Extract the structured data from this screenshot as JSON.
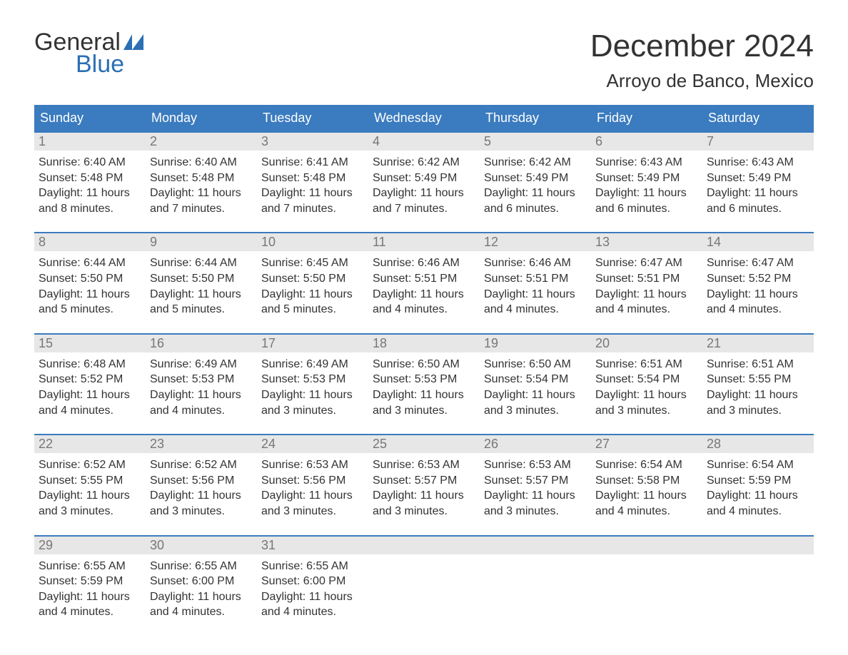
{
  "logo": {
    "word1": "General",
    "word2": "Blue",
    "word1_color": "#333333",
    "word2_color": "#2b6fb5"
  },
  "title": "December 2024",
  "subtitle": "Arroyo de Banco, Mexico",
  "colors": {
    "header_bg": "#3b7bbf",
    "header_text": "#ffffff",
    "daynum_bg": "#e7e7e7",
    "daynum_text": "#777777",
    "body_text": "#333333",
    "row_border": "#3b7bbf",
    "page_bg": "#ffffff"
  },
  "typography": {
    "title_fontsize": 44,
    "subtitle_fontsize": 26,
    "weekday_fontsize": 18,
    "daynum_fontsize": 18,
    "body_fontsize": 16
  },
  "weekdays": [
    "Sunday",
    "Monday",
    "Tuesday",
    "Wednesday",
    "Thursday",
    "Friday",
    "Saturday"
  ],
  "weeks": [
    [
      {
        "day": "1",
        "sunrise": "Sunrise: 6:40 AM",
        "sunset": "Sunset: 5:48 PM",
        "daylight": "Daylight: 11 hours and 8 minutes."
      },
      {
        "day": "2",
        "sunrise": "Sunrise: 6:40 AM",
        "sunset": "Sunset: 5:48 PM",
        "daylight": "Daylight: 11 hours and 7 minutes."
      },
      {
        "day": "3",
        "sunrise": "Sunrise: 6:41 AM",
        "sunset": "Sunset: 5:48 PM",
        "daylight": "Daylight: 11 hours and 7 minutes."
      },
      {
        "day": "4",
        "sunrise": "Sunrise: 6:42 AM",
        "sunset": "Sunset: 5:49 PM",
        "daylight": "Daylight: 11 hours and 7 minutes."
      },
      {
        "day": "5",
        "sunrise": "Sunrise: 6:42 AM",
        "sunset": "Sunset: 5:49 PM",
        "daylight": "Daylight: 11 hours and 6 minutes."
      },
      {
        "day": "6",
        "sunrise": "Sunrise: 6:43 AM",
        "sunset": "Sunset: 5:49 PM",
        "daylight": "Daylight: 11 hours and 6 minutes."
      },
      {
        "day": "7",
        "sunrise": "Sunrise: 6:43 AM",
        "sunset": "Sunset: 5:49 PM",
        "daylight": "Daylight: 11 hours and 6 minutes."
      }
    ],
    [
      {
        "day": "8",
        "sunrise": "Sunrise: 6:44 AM",
        "sunset": "Sunset: 5:50 PM",
        "daylight": "Daylight: 11 hours and 5 minutes."
      },
      {
        "day": "9",
        "sunrise": "Sunrise: 6:44 AM",
        "sunset": "Sunset: 5:50 PM",
        "daylight": "Daylight: 11 hours and 5 minutes."
      },
      {
        "day": "10",
        "sunrise": "Sunrise: 6:45 AM",
        "sunset": "Sunset: 5:50 PM",
        "daylight": "Daylight: 11 hours and 5 minutes."
      },
      {
        "day": "11",
        "sunrise": "Sunrise: 6:46 AM",
        "sunset": "Sunset: 5:51 PM",
        "daylight": "Daylight: 11 hours and 4 minutes."
      },
      {
        "day": "12",
        "sunrise": "Sunrise: 6:46 AM",
        "sunset": "Sunset: 5:51 PM",
        "daylight": "Daylight: 11 hours and 4 minutes."
      },
      {
        "day": "13",
        "sunrise": "Sunrise: 6:47 AM",
        "sunset": "Sunset: 5:51 PM",
        "daylight": "Daylight: 11 hours and 4 minutes."
      },
      {
        "day": "14",
        "sunrise": "Sunrise: 6:47 AM",
        "sunset": "Sunset: 5:52 PM",
        "daylight": "Daylight: 11 hours and 4 minutes."
      }
    ],
    [
      {
        "day": "15",
        "sunrise": "Sunrise: 6:48 AM",
        "sunset": "Sunset: 5:52 PM",
        "daylight": "Daylight: 11 hours and 4 minutes."
      },
      {
        "day": "16",
        "sunrise": "Sunrise: 6:49 AM",
        "sunset": "Sunset: 5:53 PM",
        "daylight": "Daylight: 11 hours and 4 minutes."
      },
      {
        "day": "17",
        "sunrise": "Sunrise: 6:49 AM",
        "sunset": "Sunset: 5:53 PM",
        "daylight": "Daylight: 11 hours and 3 minutes."
      },
      {
        "day": "18",
        "sunrise": "Sunrise: 6:50 AM",
        "sunset": "Sunset: 5:53 PM",
        "daylight": "Daylight: 11 hours and 3 minutes."
      },
      {
        "day": "19",
        "sunrise": "Sunrise: 6:50 AM",
        "sunset": "Sunset: 5:54 PM",
        "daylight": "Daylight: 11 hours and 3 minutes."
      },
      {
        "day": "20",
        "sunrise": "Sunrise: 6:51 AM",
        "sunset": "Sunset: 5:54 PM",
        "daylight": "Daylight: 11 hours and 3 minutes."
      },
      {
        "day": "21",
        "sunrise": "Sunrise: 6:51 AM",
        "sunset": "Sunset: 5:55 PM",
        "daylight": "Daylight: 11 hours and 3 minutes."
      }
    ],
    [
      {
        "day": "22",
        "sunrise": "Sunrise: 6:52 AM",
        "sunset": "Sunset: 5:55 PM",
        "daylight": "Daylight: 11 hours and 3 minutes."
      },
      {
        "day": "23",
        "sunrise": "Sunrise: 6:52 AM",
        "sunset": "Sunset: 5:56 PM",
        "daylight": "Daylight: 11 hours and 3 minutes."
      },
      {
        "day": "24",
        "sunrise": "Sunrise: 6:53 AM",
        "sunset": "Sunset: 5:56 PM",
        "daylight": "Daylight: 11 hours and 3 minutes."
      },
      {
        "day": "25",
        "sunrise": "Sunrise: 6:53 AM",
        "sunset": "Sunset: 5:57 PM",
        "daylight": "Daylight: 11 hours and 3 minutes."
      },
      {
        "day": "26",
        "sunrise": "Sunrise: 6:53 AM",
        "sunset": "Sunset: 5:57 PM",
        "daylight": "Daylight: 11 hours and 3 minutes."
      },
      {
        "day": "27",
        "sunrise": "Sunrise: 6:54 AM",
        "sunset": "Sunset: 5:58 PM",
        "daylight": "Daylight: 11 hours and 4 minutes."
      },
      {
        "day": "28",
        "sunrise": "Sunrise: 6:54 AM",
        "sunset": "Sunset: 5:59 PM",
        "daylight": "Daylight: 11 hours and 4 minutes."
      }
    ],
    [
      {
        "day": "29",
        "sunrise": "Sunrise: 6:55 AM",
        "sunset": "Sunset: 5:59 PM",
        "daylight": "Daylight: 11 hours and 4 minutes."
      },
      {
        "day": "30",
        "sunrise": "Sunrise: 6:55 AM",
        "sunset": "Sunset: 6:00 PM",
        "daylight": "Daylight: 11 hours and 4 minutes."
      },
      {
        "day": "31",
        "sunrise": "Sunrise: 6:55 AM",
        "sunset": "Sunset: 6:00 PM",
        "daylight": "Daylight: 11 hours and 4 minutes."
      },
      null,
      null,
      null,
      null
    ]
  ]
}
